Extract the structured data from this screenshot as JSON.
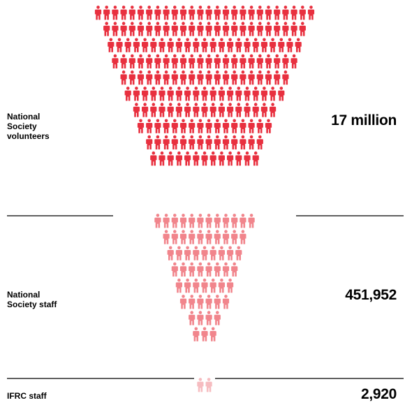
{
  "colors": {
    "volunteers": "#e8303f",
    "national_staff": "#f1858c",
    "ifrc_staff": "#f6bcc0",
    "divider": "#000000"
  },
  "icon": "person-icon",
  "groups": [
    {
      "id": "volunteers",
      "label_lines": [
        "National",
        "Society",
        "volunteers"
      ],
      "value": "17 million",
      "rows": [
        26,
        24,
        23,
        22,
        20,
        19,
        17,
        16,
        14,
        13
      ],
      "shade": "volunteers"
    },
    {
      "id": "national-staff",
      "label_lines": [
        "National",
        "Society staff"
      ],
      "value": "451,952",
      "rows": [
        12,
        10,
        9,
        8,
        7,
        6,
        4,
        3
      ],
      "shade": "national_staff"
    },
    {
      "id": "ifrc-staff",
      "label_lines": [
        "IFRC staff"
      ],
      "value": "2,920",
      "rows": [
        2
      ],
      "shade": "ifrc_staff"
    }
  ]
}
